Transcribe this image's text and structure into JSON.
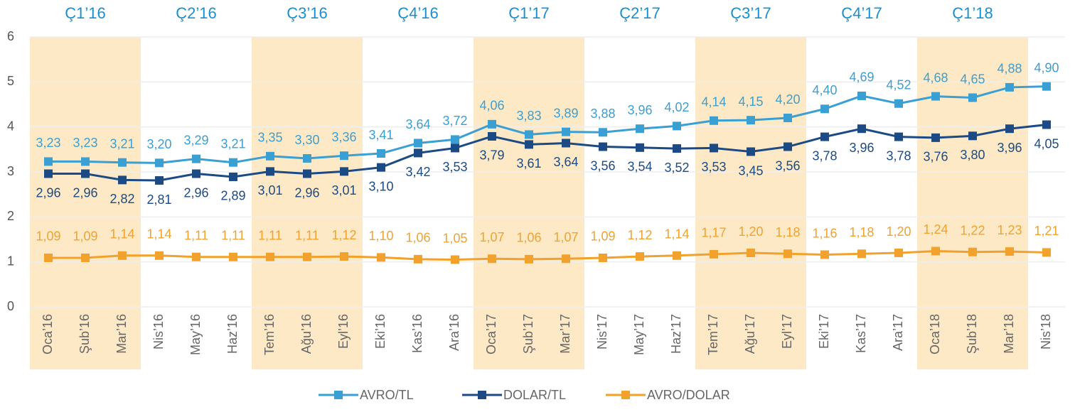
{
  "chart_data": {
    "type": "line",
    "quarters": [
      "Ç1’16",
      "Ç2’16",
      "Ç3’16",
      "Ç4’16",
      "Ç1’17",
      "Ç2’17",
      "Ç3’17",
      "Ç4’17",
      "Ç1’18"
    ],
    "categories": [
      "Oca’16",
      "Şub’16",
      "Mar’16",
      "Nis’16",
      "May’16",
      "Haz’16",
      "Tem’16",
      "Ağu’16",
      "Eyl’16",
      "Eki’16",
      "Kas’16",
      "Ara’16",
      "Oca’17",
      "Şub’17",
      "Mar’17",
      "Nis’17",
      "May’17",
      "Haz’17",
      "Tem’17",
      "Ağu’17",
      "Eyl’17",
      "Eki’17",
      "Kas’17",
      "Ara’17",
      "Oca’18",
      "Şub’18",
      "Mar’18",
      "Nis’18"
    ],
    "ylim": [
      0,
      6
    ],
    "yticks": [
      0,
      1,
      2,
      3,
      4,
      5,
      6
    ],
    "grid": true,
    "series": [
      {
        "name": "AVRO/TL",
        "color": "#3a9fd3",
        "values": [
          3.23,
          3.23,
          3.21,
          3.2,
          3.29,
          3.21,
          3.35,
          3.3,
          3.36,
          3.41,
          3.64,
          3.72,
          4.06,
          3.83,
          3.89,
          3.88,
          3.96,
          4.02,
          4.14,
          4.15,
          4.2,
          4.4,
          4.69,
          4.52,
          4.68,
          4.65,
          4.88,
          4.9
        ],
        "value_labels": [
          "3,23",
          "3,23",
          "3,21",
          "3,20",
          "3,29",
          "3,21",
          "3,35",
          "3,30",
          "3,36",
          "3,41",
          "3,64",
          "3,72",
          "4,06",
          "3,83",
          "3,89",
          "3,88",
          "3,96",
          "4,02",
          "4,14",
          "4,15",
          "4,20",
          "4,40",
          "4,69",
          "4,52",
          "4,68",
          "4,65",
          "4,88",
          "4,90"
        ]
      },
      {
        "name": "DOLAR/TL",
        "color": "#1c4a84",
        "values": [
          2.96,
          2.96,
          2.82,
          2.81,
          2.96,
          2.89,
          3.01,
          2.96,
          3.01,
          3.1,
          3.42,
          3.53,
          3.79,
          3.61,
          3.64,
          3.56,
          3.54,
          3.52,
          3.53,
          3.45,
          3.56,
          3.78,
          3.96,
          3.78,
          3.76,
          3.8,
          3.96,
          4.05
        ],
        "value_labels": [
          "2,96",
          "2,96",
          "2,82",
          "2,81",
          "2,96",
          "2,89",
          "3,01",
          "2,96",
          "3,01",
          "3,10",
          "3,42",
          "3,53",
          "3,79",
          "3,61",
          "3,64",
          "3,56",
          "3,54",
          "3,52",
          "3,53",
          "3,45",
          "3,56",
          "3,78",
          "3,96",
          "3,78",
          "3,76",
          "3,80",
          "3,96",
          "4,05"
        ]
      },
      {
        "name": "AVRO/DOLAR",
        "color": "#f2a22c",
        "values": [
          1.09,
          1.09,
          1.14,
          1.14,
          1.11,
          1.11,
          1.11,
          1.11,
          1.12,
          1.1,
          1.06,
          1.05,
          1.07,
          1.06,
          1.07,
          1.09,
          1.12,
          1.14,
          1.17,
          1.2,
          1.18,
          1.16,
          1.18,
          1.2,
          1.24,
          1.22,
          1.23,
          1.21
        ],
        "value_labels": [
          "1,09",
          "1,09",
          "1,14",
          "1,14",
          "1,11",
          "1,11",
          "1,11",
          "1,11",
          "1,12",
          "1,10",
          "1,06",
          "1,05",
          "1,07",
          "1,06",
          "1,07",
          "1,09",
          "1,12",
          "1,14",
          "1,17",
          "1,20",
          "1,18",
          "1,16",
          "1,18",
          "1,20",
          "1,24",
          "1,22",
          "1,23",
          "1,21"
        ]
      }
    ]
  }
}
